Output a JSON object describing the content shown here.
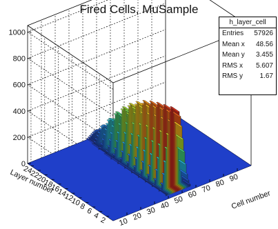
{
  "chart_data": {
    "type": "lego3d",
    "title": "Fired Cells, MuSample",
    "xlabel": "Cell number",
    "ylabel": "Layer number",
    "zlabel": "",
    "x_ticks": [
      "10",
      "20",
      "30",
      "40",
      "50",
      "60",
      "70",
      "80",
      "90"
    ],
    "y_ticks": [
      "2",
      "4",
      "6",
      "8",
      "10",
      "12",
      "14",
      "16",
      "18",
      "20",
      "22",
      "24"
    ],
    "z_ticks": [
      "0",
      "200",
      "400",
      "600",
      "800",
      "1000"
    ],
    "xlim": [
      0,
      100
    ],
    "ylim": [
      0,
      25
    ],
    "zlim": [
      0,
      1050
    ],
    "cell_bins": [
      41,
      42,
      43,
      44,
      45,
      46,
      47,
      48,
      49,
      50,
      51,
      52,
      53,
      54,
      55,
      56,
      57,
      58
    ],
    "layer_bins": [
      2,
      4,
      6,
      8,
      10,
      12,
      14,
      16,
      18,
      20,
      22,
      24
    ],
    "peak_profile_vs_cell": [
      20,
      60,
      130,
      220,
      320,
      420,
      520,
      590,
      610,
      600,
      560,
      480,
      380,
      280,
      180,
      100,
      50,
      15
    ],
    "peak_profile_vs_layer": [
      1.0,
      0.97,
      0.94,
      0.9,
      0.85,
      0.78,
      0.7,
      0.6,
      0.48,
      0.34,
      0.2,
      0.08
    ],
    "baseline_color": "#1f3fc9"
  },
  "stats": {
    "name": "h_layer_cell",
    "rows": [
      {
        "label": "Entries",
        "value": "57926"
      },
      {
        "label": "Mean x",
        "value": "48.56"
      },
      {
        "label": "Mean y",
        "value": "3.455"
      },
      {
        "label": "RMS x",
        "value": "5.607"
      },
      {
        "label": "RMS y",
        "value": "1.67"
      }
    ]
  }
}
